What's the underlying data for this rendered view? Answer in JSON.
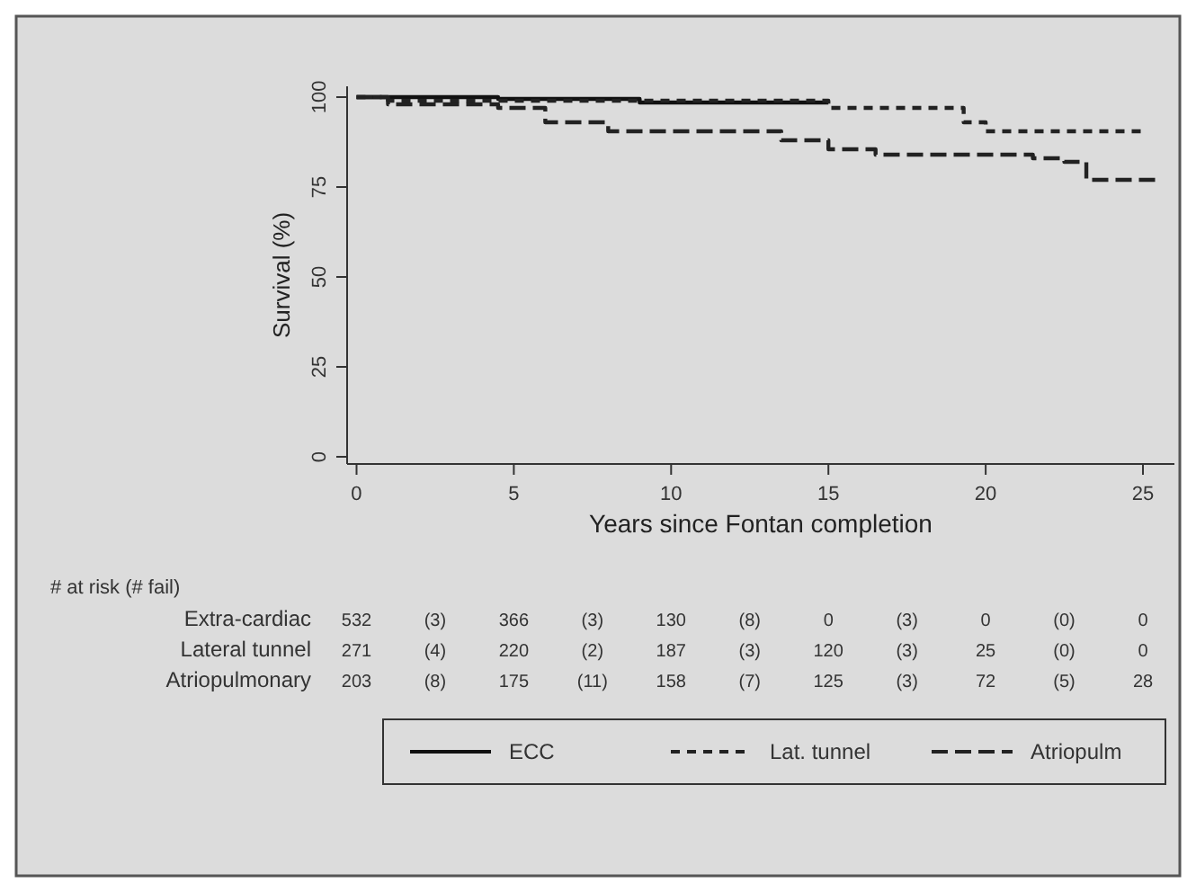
{
  "chart_data": {
    "type": "step",
    "xlabel": "Years since Fontan completion",
    "ylabel": "Survival (%)",
    "xlim": [
      -0.3,
      26
    ],
    "xticks": [
      0,
      5,
      10,
      15,
      20,
      25
    ],
    "ylim": [
      -2,
      103
    ],
    "yticks": [
      0,
      25,
      50,
      75,
      100
    ],
    "grid": false,
    "legend": "bottom",
    "series": [
      {
        "name": "ECC",
        "color": "#111111",
        "line_style": "solid",
        "x": [
          0,
          4.5,
          9,
          15
        ],
        "values": [
          100,
          99.5,
          98.5,
          98.5
        ]
      },
      {
        "name": "Lat. tunnel",
        "color": "#222222",
        "line_style": "dotted",
        "x": [
          0,
          1,
          15,
          19.3,
          20,
          25
        ],
        "values": [
          100,
          99,
          97,
          93,
          90.5,
          90.5
        ]
      },
      {
        "name": "Atriopulm",
        "color": "#222222",
        "line_style": "dashed",
        "x": [
          0,
          1,
          4.5,
          6,
          8,
          13.5,
          15,
          16.5,
          21.5,
          22.5,
          23.2,
          25.5
        ],
        "values": [
          100,
          98,
          97,
          93,
          90.5,
          88,
          85.5,
          84,
          83,
          82,
          77,
          77.5
        ]
      }
    ],
    "annotations": [
      "# at risk (# fail)",
      "Extra-cardiac",
      "532",
      "(3)",
      "366",
      "(3)",
      "130",
      "(8)",
      "0",
      "(3)",
      "0",
      "(0)",
      "0",
      "Lateral tunnel",
      "271",
      "(4)",
      "220",
      "(2)",
      "187",
      "(3)",
      "120",
      "(3)",
      "25",
      "(0)",
      "0",
      "Atriopulmonary",
      "203",
      "(8)",
      "175",
      "(11)",
      "158",
      "(7)",
      "125",
      "(3)",
      "72",
      "(5)",
      "28"
    ]
  }
}
